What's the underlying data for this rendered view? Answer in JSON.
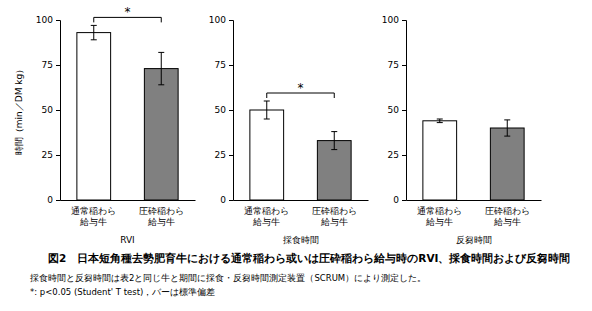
{
  "figure_title": "図2　日本短角種去勢肥育牛における通常稲わら或いは圧砕稲わら給与時のRVI、採食時間および反芻時間",
  "notes": [
    "採食時間と反芻時間は表2と同じ牛と期間に採食・反芻時間測定装置（SCRUM）により測定した。",
    "*: p<0.05 (Student' T test)，バーは標準偏差"
  ],
  "chart_data": [
    {
      "type": "bar",
      "y_label": "時間（min／DM kg）",
      "x_label": "RVI",
      "categories": [
        "通常稲わら\n給与牛",
        "圧砕稲わら\n給与牛"
      ],
      "values": [
        93,
        73
      ],
      "errors": [
        4,
        9
      ],
      "colors": [
        "#ffffff",
        "#808080"
      ],
      "ylim": [
        0,
        100
      ],
      "yticks": [
        0,
        25,
        50,
        75,
        100
      ],
      "annotation": "*"
    },
    {
      "type": "bar",
      "x_label": "採食時間",
      "categories": [
        "通常稲わら\n給与牛",
        "圧砕稲わら\n給与牛"
      ],
      "values": [
        50,
        33
      ],
      "errors": [
        5,
        5
      ],
      "colors": [
        "#ffffff",
        "#808080"
      ],
      "ylim": [
        0,
        100
      ],
      "yticks": [
        0,
        25,
        50,
        75,
        100
      ],
      "annotation": "*"
    },
    {
      "type": "bar",
      "x_label": "反芻時間",
      "categories": [
        "通常稲わら\n給与牛",
        "圧砕稲わら\n給与牛"
      ],
      "values": [
        44,
        40
      ],
      "errors": [
        1,
        4.5
      ],
      "colors": [
        "#ffffff",
        "#808080"
      ],
      "ylim": [
        0,
        100
      ],
      "yticks": [
        0,
        25,
        50,
        75,
        100
      ]
    }
  ]
}
